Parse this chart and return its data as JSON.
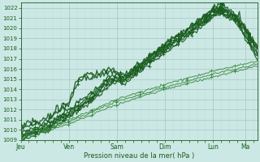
{
  "xlabel": "Pression niveau de la mer( hPa )",
  "ylim": [
    1009,
    1022.5
  ],
  "yticks": [
    1009,
    1010,
    1011,
    1012,
    1013,
    1014,
    1015,
    1016,
    1017,
    1018,
    1019,
    1020,
    1021,
    1022
  ],
  "x_day_labels": [
    "Jeu",
    "Ven",
    "Sam",
    "Dim",
    "Lun",
    "Ma"
  ],
  "x_day_positions": [
    0,
    24,
    48,
    72,
    96,
    112
  ],
  "xlim": [
    0,
    118
  ],
  "bg_color": "#cce8e4",
  "grid_color_major": "#aaccca",
  "grid_color_minor": "#bcdcda",
  "line_color_dark": "#1a5c20",
  "line_color_mid": "#2a7030",
  "line_color_light": "#3a8840",
  "num_steps": 200
}
